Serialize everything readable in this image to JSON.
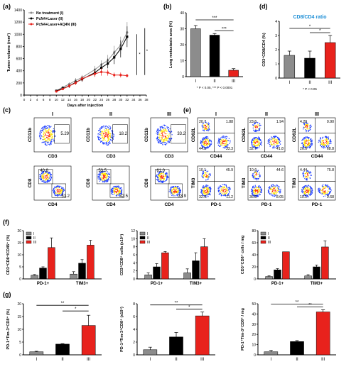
{
  "panel_letters": [
    "(a)",
    "(b)",
    "(c)",
    "(d)",
    "(e)",
    "(f)",
    "(g)"
  ],
  "colors": {
    "group_I": "#8c8c8c",
    "group_II": "#000000",
    "group_III": "#e8221c",
    "flow_hot": "#ff2a00",
    "flow_mid": "#ffe600",
    "flow_cold": "#1f3fff",
    "title_blue": "#1f8fd6"
  },
  "chart_data": [
    {
      "id": "a",
      "type": "line",
      "xlabel": "Days after injection",
      "ylabel": "Tumor volume (mm³)",
      "xlim": [
        0,
        38
      ],
      "ylim": [
        0,
        1400
      ],
      "xticks": [
        0,
        2,
        4,
        6,
        8,
        10,
        12,
        14,
        16,
        18,
        20,
        22,
        24,
        26,
        28,
        30,
        32,
        34,
        36,
        38
      ],
      "yticks": [
        0,
        200,
        400,
        600,
        800,
        1000,
        1200,
        1400
      ],
      "legend_position": "top-left",
      "x": [
        10,
        12,
        14,
        16,
        18,
        22,
        24,
        26,
        28,
        30,
        32
      ],
      "series": [
        {
          "name": "No treatment (I)",
          "values": [
            70,
            130,
            180,
            240,
            290,
            420,
            500,
            570,
            700,
            820,
            1030
          ],
          "err": [
            10,
            20,
            30,
            40,
            40,
            60,
            70,
            90,
            110,
            140,
            170
          ]
        },
        {
          "name": "PcN4+Laser (II)",
          "values": [
            70,
            110,
            150,
            210,
            260,
            370,
            450,
            520,
            620,
            760,
            960
          ],
          "err": [
            10,
            20,
            30,
            40,
            40,
            60,
            70,
            80,
            110,
            140,
            170
          ]
        },
        {
          "name": "PcN4+Laser+AQ4N (III)",
          "values": [
            60,
            100,
            150,
            200,
            270,
            350,
            380,
            370,
            330,
            330,
            320
          ],
          "err": [
            10,
            20,
            30,
            30,
            40,
            50,
            60,
            50,
            40,
            40,
            30
          ]
        }
      ],
      "significance": [
        "*",
        "*"
      ]
    },
    {
      "id": "b",
      "type": "bar",
      "ylabel": "Lung metastasis area (%)",
      "categories": [
        "I",
        "II",
        "III"
      ],
      "values": [
        30,
        26,
        4
      ],
      "err": [
        2,
        1,
        1
      ],
      "ylim": [
        0,
        40
      ],
      "yticks": [
        0,
        10,
        20,
        30,
        40
      ],
      "significance": [
        "***",
        "***"
      ],
      "note": "* P < 0.05, *** P < 0.0001"
    },
    {
      "id": "d",
      "type": "bar",
      "title": "CD8/CD4 ratio",
      "ylabel": "CD3⁺CD8/CD4 (%)",
      "categories": [
        "I",
        "II",
        "III"
      ],
      "values": [
        1.6,
        1.4,
        2.5
      ],
      "err": [
        0.3,
        0.5,
        0.5
      ],
      "ylim": [
        0,
        4
      ],
      "yticks": [
        0,
        1,
        2,
        3,
        4
      ],
      "significance": [
        "*",
        "*"
      ],
      "note": "* P < 0.05"
    },
    {
      "id": "f1",
      "type": "bar",
      "ylabel": "CD3⁺CD8⁺/CD45⁺ (%)",
      "categories": [
        "PD-1+",
        "TIM3+"
      ],
      "series": [
        {
          "name": "I",
          "values": [
            1.5,
            2
          ]
        },
        {
          "name": "II",
          "values": [
            4.5,
            6.5
          ]
        },
        {
          "name": "III",
          "values": [
            13,
            14
          ]
        }
      ],
      "err": [
        [
          0.3,
          1
        ],
        [
          0.5,
          1.5
        ],
        [
          4,
          2
        ]
      ],
      "ylim": [
        0,
        20
      ],
      "yticks": [
        0,
        5,
        10,
        15,
        20
      ],
      "legend_position": "top-left"
    },
    {
      "id": "f2",
      "type": "bar",
      "ylabel": "CD3⁺CD8⁺ cells (x10⁵)",
      "categories": [
        "PD-1+",
        "TIM3+"
      ],
      "series": [
        {
          "name": "I",
          "values": [
            1,
            1.5
          ]
        },
        {
          "name": "II",
          "values": [
            3,
            4.5
          ]
        },
        {
          "name": "III",
          "values": [
            6.5,
            8
          ]
        }
      ],
      "err": [
        [
          0.5,
          1
        ],
        [
          0.8,
          2
        ],
        [
          0.3,
          2
        ]
      ],
      "ylim": [
        0,
        12
      ],
      "yticks": [
        0,
        2,
        4,
        6,
        8,
        10,
        12
      ],
      "legend_position": "top-left"
    },
    {
      "id": "f3",
      "type": "bar",
      "ylabel": "CD3⁺CD8⁺ cells / mg",
      "categories": [
        "PD-1+",
        "TIM3+"
      ],
      "series": [
        {
          "name": "I",
          "values": [
            4,
            5
          ]
        },
        {
          "name": "II",
          "values": [
            15,
            20
          ]
        },
        {
          "name": "III",
          "values": [
            45,
            53
          ]
        }
      ],
      "err": [
        [
          1,
          2
        ],
        [
          2,
          3
        ],
        [
          0,
          10
        ]
      ],
      "ylim": [
        0,
        80
      ],
      "yticks": [
        0,
        20,
        40,
        60,
        80
      ],
      "legend_position": "top-left"
    },
    {
      "id": "g1",
      "type": "bar",
      "ylabel": "PD-1⁺Tim-3⁺CD8⁺ (%)",
      "categories": [
        "I",
        "II",
        "III"
      ],
      "values": [
        1.2,
        4.2,
        11.5
      ],
      "err": [
        0.2,
        0.2,
        4
      ],
      "ylim": [
        0,
        20
      ],
      "yticks": [
        0,
        5,
        10,
        15,
        20
      ],
      "significance": [
        "**",
        "*"
      ]
    },
    {
      "id": "g2",
      "type": "bar",
      "ylabel": "PD-1⁺Tim-3⁺CD8⁺ (x10⁵)",
      "categories": [
        "I",
        "II",
        "III"
      ],
      "values": [
        0.8,
        2.8,
        6.1
      ],
      "err": [
        0.4,
        0.7,
        0.6
      ],
      "ylim": [
        0,
        8
      ],
      "yticks": [
        0,
        2,
        4,
        6,
        8
      ],
      "significance": [
        "**",
        "*"
      ]
    },
    {
      "id": "g3",
      "type": "bar",
      "ylabel": "PD-1⁺Tim-3⁺CD8⁺ / mg",
      "categories": [
        "I",
        "II",
        "III"
      ],
      "values": [
        3,
        13,
        42
      ],
      "err": [
        1.5,
        1,
        2
      ],
      "ylim": [
        0,
        50
      ],
      "yticks": [
        0,
        10,
        20,
        30,
        40,
        50
      ],
      "significance": [
        "**",
        "**"
      ]
    }
  ],
  "flow_c": {
    "group_labels": [
      "I",
      "II",
      "III"
    ],
    "rows": [
      {
        "xlabel": "CD3",
        "ylabel": "CD11b",
        "cells": [
          {
            "q": [
              "5.29"
            ]
          },
          {
            "q": [
              "18.2"
            ]
          },
          {
            "q": [
              "33.2"
            ]
          }
        ]
      },
      {
        "xlabel": "CD4",
        "ylabel": "CD8",
        "cells": [
          {
            "q": [
              "40.8",
              "51.2"
            ]
          },
          {
            "q": [
              "53.5",
              "42.5"
            ]
          },
          {
            "q": [
              "61.0",
              "33.9"
            ]
          }
        ]
      }
    ]
  },
  "flow_e": {
    "group_labels": [
      "I",
      "II",
      "III"
    ],
    "rows": [
      {
        "xlabel": "CD44",
        "ylabel": "CD62L",
        "cells": [
          {
            "q": [
              "20.7",
              "1.88",
              "44.2",
              "33.3"
            ]
          },
          {
            "q": [
              "23.6",
              "1.94",
              "32.7",
              "41.8"
            ]
          },
          {
            "q": [
              "4.29",
              "0.90",
              "26.0",
              "68.8"
            ]
          }
        ]
      },
      {
        "xlabel": "PD-1",
        "ylabel": "TIM3",
        "cells": [
          {
            "q": [
              "10.1",
              "45.9",
              "32.9",
              "11.2"
            ]
          },
          {
            "q": [
              "10.6",
              "44.6",
              "36.8",
              "8.05"
            ]
          },
          {
            "q": [
              "4.44",
              "75.8",
              "10.1",
              "9.68"
            ]
          }
        ]
      }
    ]
  }
}
